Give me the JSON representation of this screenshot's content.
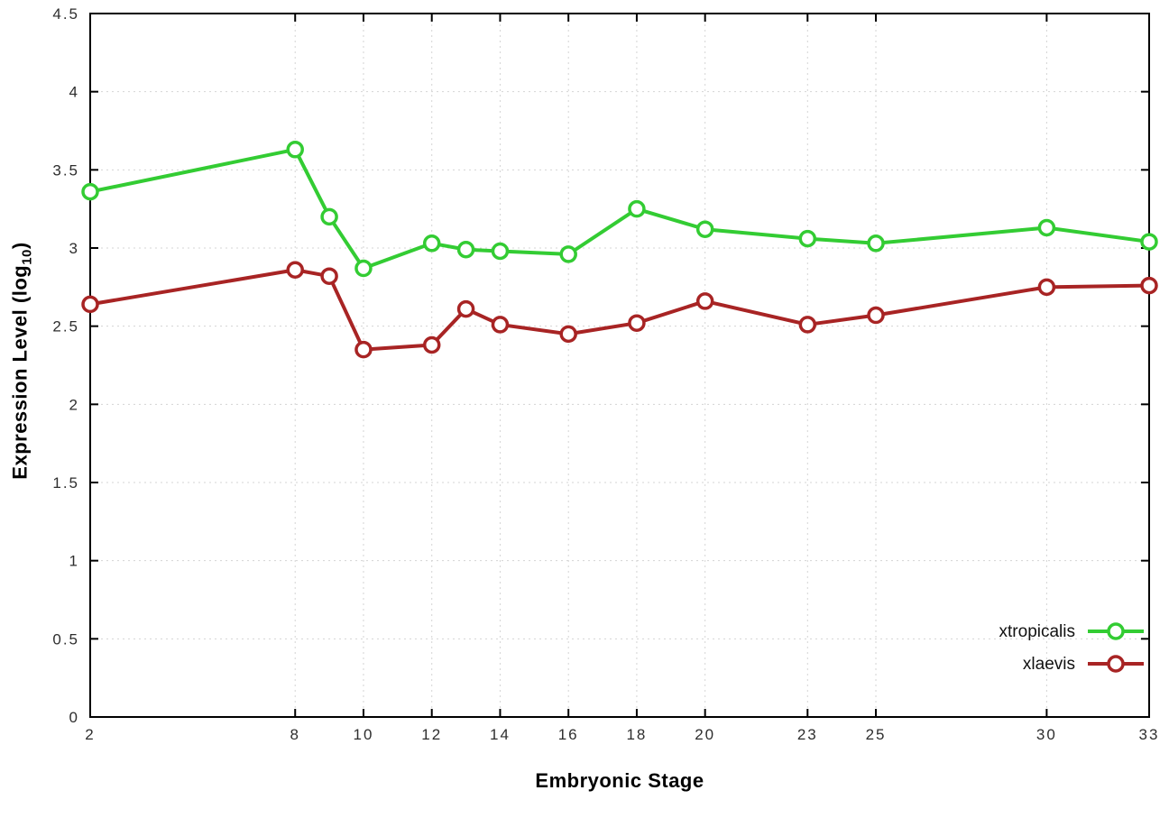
{
  "figure": {
    "xlabel": "Embryonic Stage",
    "ylabel_prefix": "Expression Level (log",
    "ylabel_sub": "10",
    "ylabel_suffix": ")"
  },
  "chart_data": {
    "type": "line",
    "title": "",
    "xlabel": "Embryonic Stage",
    "ylabel": "Expression Level (log10)",
    "x": [
      2,
      8,
      9,
      10,
      12,
      13,
      14,
      16,
      18,
      20,
      23,
      25,
      30,
      33
    ],
    "series": [
      {
        "name": "xtropicalis",
        "color": "#33cc33",
        "values": [
          3.36,
          3.63,
          3.2,
          2.87,
          3.03,
          2.99,
          2.98,
          2.96,
          3.25,
          3.12,
          3.06,
          3.03,
          3.13,
          3.04
        ]
      },
      {
        "name": "xlaevis",
        "color": "#a82424",
        "values": [
          2.64,
          2.86,
          2.82,
          2.35,
          2.38,
          2.61,
          2.51,
          2.45,
          2.52,
          2.66,
          2.51,
          2.57,
          2.75,
          2.76
        ]
      }
    ],
    "xticks": [
      2,
      8,
      10,
      12,
      14,
      16,
      18,
      20,
      23,
      25,
      30,
      33
    ],
    "yticks": [
      0,
      0.5,
      1,
      1.5,
      2,
      2.5,
      3,
      3.5,
      4,
      4.5
    ],
    "xlim": [
      2,
      33
    ],
    "ylim": [
      0,
      4.5
    ],
    "grid": true,
    "grid_color": "#d4d4d4",
    "border_color": "#000000",
    "legend_position": "bottom-right",
    "marker": "open-circle",
    "line_width": 4,
    "marker_radius": 8
  }
}
